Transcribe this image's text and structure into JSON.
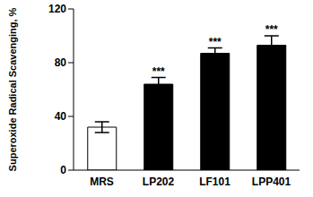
{
  "chart_data": {
    "type": "bar",
    "y_label": "Superoxide Radical Scavenging, %",
    "categories": [
      "MRS",
      "LP202",
      "LF101",
      "LPP401"
    ],
    "values": [
      32,
      64,
      87,
      93
    ],
    "errors": [
      4,
      5,
      4,
      7
    ],
    "colors": [
      "#ffffff",
      "#000000",
      "#000000",
      "#000000"
    ],
    "ylim": [
      0,
      120
    ],
    "yticks": [
      0,
      40,
      80,
      120
    ],
    "grid": false,
    "annotations": [
      {
        "category": "LP202",
        "text": "***"
      },
      {
        "category": "LF101",
        "text": "***"
      },
      {
        "category": "LPP401",
        "text": "***"
      }
    ]
  }
}
